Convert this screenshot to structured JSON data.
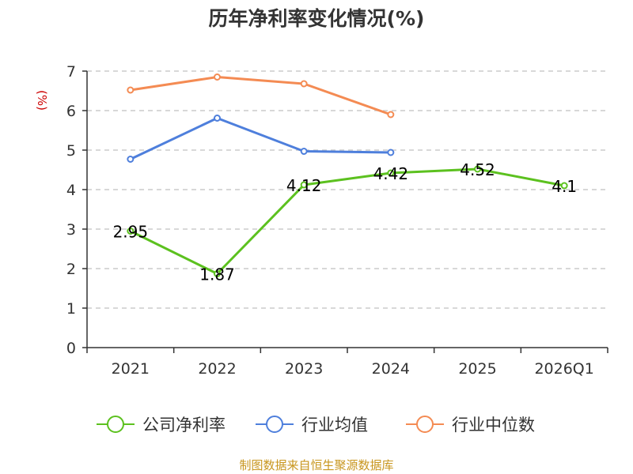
{
  "title": "历年净利率变化情况(%)",
  "source": "制图数据来自恒生聚源数据库",
  "chart_data": {
    "type": "line",
    "title": "历年净利率变化情况(%)",
    "ylabel": "(%)",
    "xlabel": "",
    "ylim": [
      0,
      7
    ],
    "yticks": [
      0,
      1,
      2,
      3,
      4,
      5,
      6,
      7
    ],
    "categories": [
      "2021",
      "2022",
      "2023",
      "2024",
      "2025",
      "2026Q1"
    ],
    "grid": "horizontal dashed",
    "legend_position": "bottom",
    "series": [
      {
        "name": "公司净利率",
        "color": "#5cc11f",
        "values": [
          2.95,
          1.87,
          4.12,
          4.42,
          4.52,
          4.1
        ],
        "labels": [
          "2.95",
          "1.87",
          "4.12",
          "4.42",
          "4.52",
          "4.1"
        ]
      },
      {
        "name": "行业均值",
        "color": "#4e7fdc",
        "values": [
          4.77,
          5.81,
          4.97,
          4.94,
          null,
          null
        ]
      },
      {
        "name": "行业中位数",
        "color": "#f48b53",
        "values": [
          6.52,
          6.85,
          6.68,
          5.9,
          null,
          null
        ]
      }
    ]
  }
}
